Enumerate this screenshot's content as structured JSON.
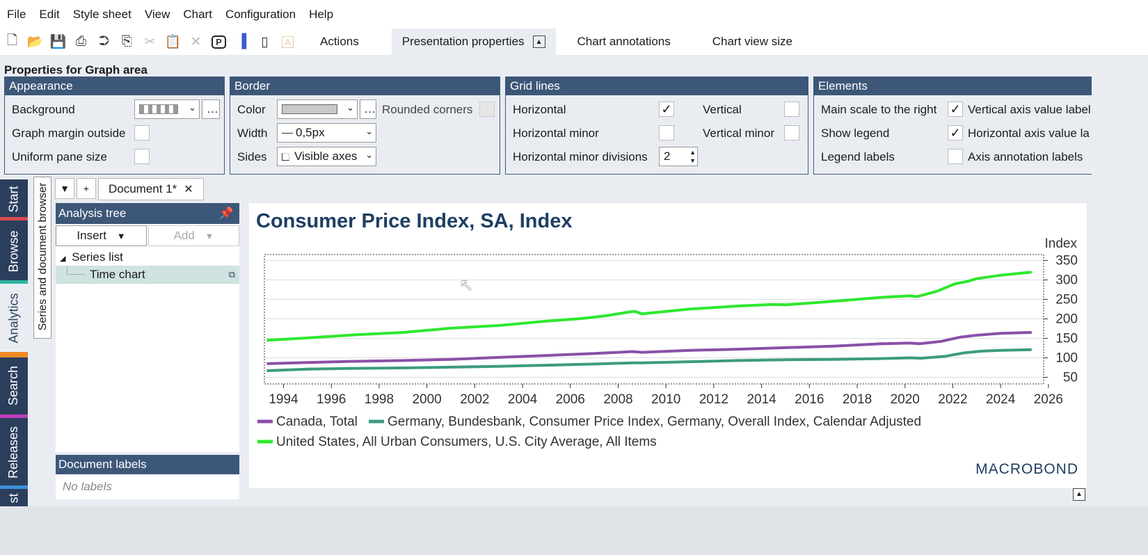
{
  "menu": [
    "File",
    "Edit",
    "Style sheet",
    "View",
    "Chart",
    "Configuration",
    "Help"
  ],
  "toolbar": {
    "tabs": {
      "actions": "Actions",
      "presentation": "Presentation properties",
      "annotations": "Chart annotations",
      "view_size": "Chart view size"
    }
  },
  "props": {
    "title": "Properties for Graph area",
    "appearance": {
      "head": "Appearance",
      "background": "Background",
      "graph_margin": "Graph margin outside",
      "uniform_pane": "Uniform pane size"
    },
    "border": {
      "head": "Border",
      "color": "Color",
      "width": "Width",
      "width_value": "0,5px",
      "sides": "Sides",
      "sides_value": "Visible axes",
      "rounded": "Rounded corners"
    },
    "grid": {
      "head": "Grid lines",
      "horizontal": "Horizontal",
      "horizontal_minor": "Horizontal minor",
      "horizontal_minor_div": "Horizontal minor divisions",
      "horizontal_minor_div_value": "2",
      "vertical": "Vertical",
      "vertical_minor": "Vertical minor"
    },
    "elements": {
      "head": "Elements",
      "main_scale_right": "Main scale to the right",
      "show_legend": "Show legend",
      "legend_labels": "Legend labels",
      "vertical_axis_label": "Vertical axis value label",
      "horizontal_axis_label": "Horizontal axis value la",
      "axis_annotation_labels": "Axis annotation labels"
    }
  },
  "checks": {
    "horizontal": true,
    "horizontal_minor": false,
    "vertical": false,
    "vertical_minor": false,
    "main_scale_right": true,
    "show_legend": true,
    "legend_labels": false,
    "axis_annotation_labels": false,
    "graph_margin": false,
    "uniform_pane": false
  },
  "side_tabs": [
    "Start",
    "Browse",
    "Analytics",
    "Search",
    "Releases",
    "st"
  ],
  "series_browser": "Series and document browser",
  "doc_tab": "Document 1*",
  "tree": {
    "head": "Analysis tree",
    "insert": "Insert",
    "add": "Add",
    "items": {
      "series_list": "Series list",
      "time_chart": "Time chart"
    },
    "doc_labels_head": "Document labels",
    "no_labels": "No labels"
  },
  "chart_data": {
    "type": "line",
    "title": "Consumer Price Index, SA, Index",
    "ylabel": "Index",
    "ylim": [
      33,
      365
    ],
    "xlim": [
      1993.2,
      2025.8
    ],
    "yticks": [
      50,
      100,
      150,
      200,
      250,
      300,
      350
    ],
    "xticks": [
      1994,
      1996,
      1998,
      2000,
      2002,
      2004,
      2006,
      2008,
      2010,
      2012,
      2014,
      2016,
      2018,
      2020,
      2022,
      2024,
      2026
    ],
    "grid": true,
    "legend_position": "bottom",
    "brand": "MACROBOND",
    "series": [
      {
        "name": "Canada, Total",
        "color": "#8b4fa8",
        "x": [
          1993.3,
          1995,
          1997,
          1999,
          2001,
          2003,
          2005,
          2007,
          2008,
          2008.6,
          2009,
          2011,
          2013,
          2015,
          2017,
          2019,
          2020.2,
          2020.6,
          2021.5,
          2022.3,
          2023,
          2024,
          2025.3
        ],
        "y": [
          85,
          88,
          91,
          93,
          96,
          101,
          106,
          111,
          114,
          116,
          114,
          119,
          122,
          126,
          130,
          136,
          138,
          136,
          142,
          153,
          158,
          163,
          165
        ]
      },
      {
        "name": "Germany, Bundesbank, Consumer Price Index, Germany, Overall Index, Calendar Adjusted",
        "color": "#3d9a80",
        "x": [
          1993.3,
          1995,
          1997,
          1999,
          2001,
          2003,
          2005,
          2007,
          2008.6,
          2009,
          2011,
          2013,
          2015,
          2017,
          2019,
          2020.2,
          2020.7,
          2021.7,
          2022.5,
          2023.2,
          2024,
          2025.3
        ],
        "y": [
          67,
          71,
          73,
          74,
          76,
          78,
          81,
          84,
          87,
          87,
          90,
          93,
          95,
          96,
          98,
          100,
          99,
          104,
          113,
          117,
          119,
          121
        ]
      },
      {
        "name": "United States, All Urban Consumers, U.S. City Average, All Items",
        "color": "#2ee82e",
        "x": [
          1993.3,
          1995,
          1997,
          1999,
          2001,
          2003,
          2005,
          2006.5,
          2007.5,
          2008.5,
          2008.7,
          2009,
          2011,
          2013,
          2014.5,
          2015,
          2017,
          2019,
          2020.2,
          2020.5,
          2021.3,
          2022.1,
          2022.6,
          2023,
          2024,
          2025.3
        ],
        "y": [
          145,
          151,
          159,
          165,
          176,
          183,
          194,
          201,
          208,
          218,
          219,
          213,
          225,
          233,
          237,
          236,
          245,
          255,
          259,
          257,
          270,
          290,
          296,
          303,
          312,
          320
        ]
      }
    ]
  }
}
